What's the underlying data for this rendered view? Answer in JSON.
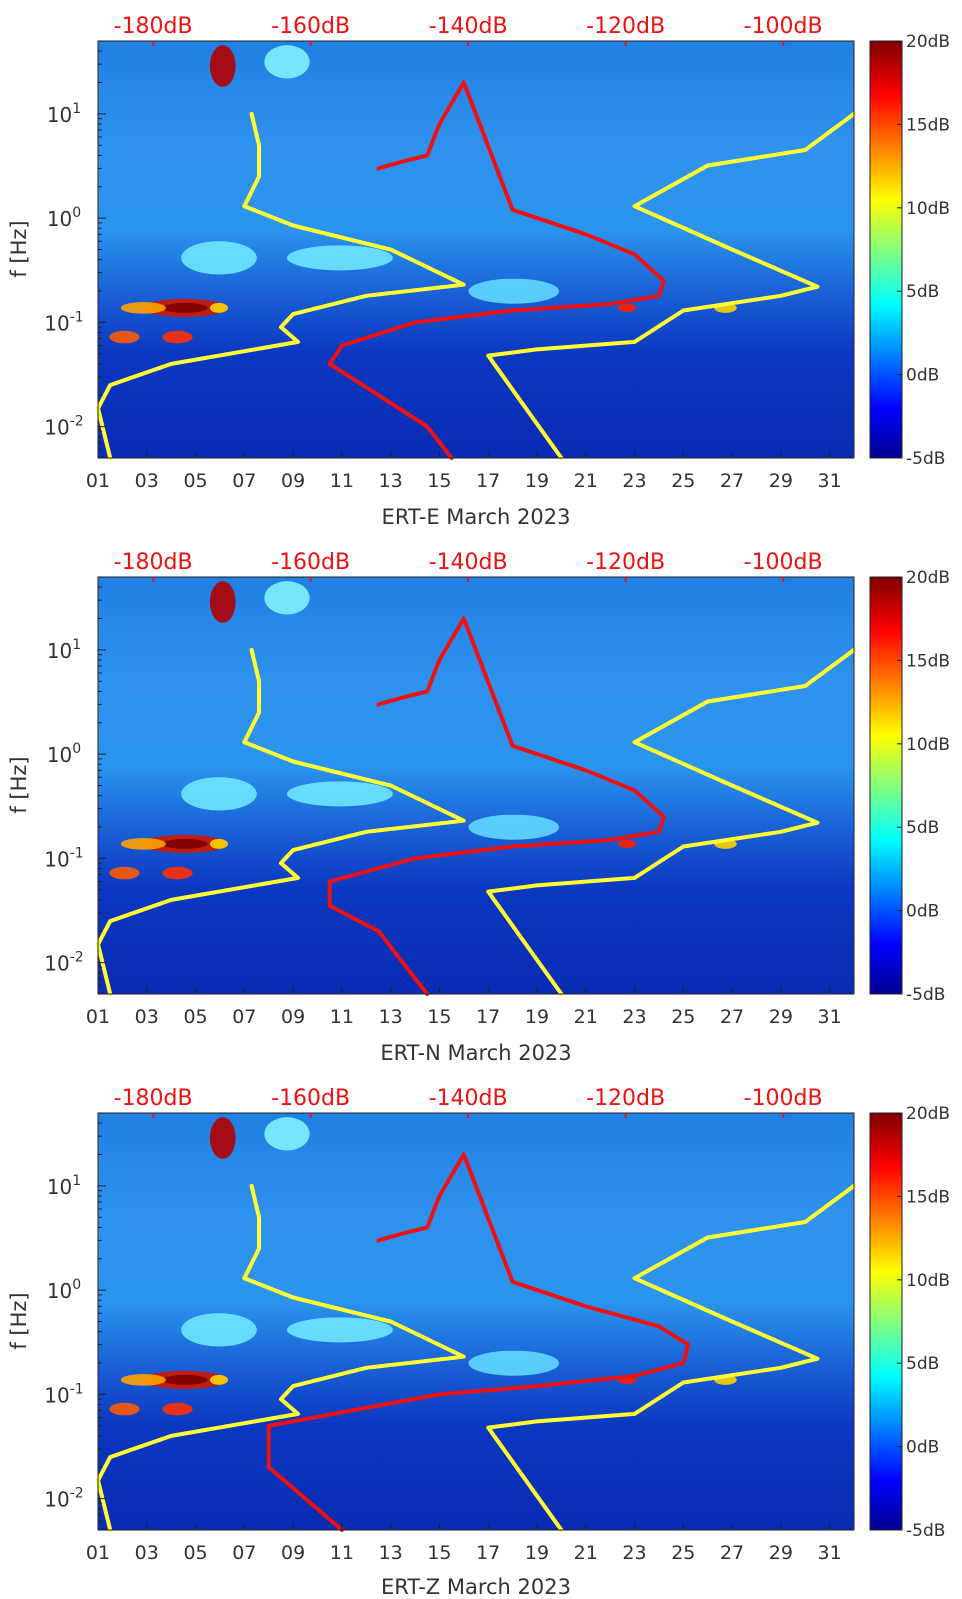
{
  "chart_data": [
    {
      "type": "heatmap",
      "xlabel": "ERT-E March 2023",
      "ylabel": "f [Hz]",
      "x_ticks": [
        "01",
        "03",
        "05",
        "07",
        "09",
        "11",
        "13",
        "15",
        "17",
        "19",
        "21",
        "23",
        "25",
        "27",
        "29",
        "31"
      ],
      "y_ticks": [
        {
          "value": 10,
          "label": "10^1"
        },
        {
          "value": 1,
          "label": "10^0"
        },
        {
          "value": 0.1,
          "label": "10^-1"
        },
        {
          "value": 0.01,
          "label": "10^-2"
        }
      ],
      "yscale": "log",
      "xlim": [
        1,
        32
      ],
      "ylim": [
        0.005,
        50
      ],
      "top_ticks": [
        "-180dB",
        "-160dB",
        "-140dB",
        "-120dB",
        "-100dB"
      ],
      "top_range": [
        -187,
        -91
      ],
      "colorbar": {
        "ticks": [
          "20dB",
          "15dB",
          "10dB",
          "5dB",
          "0dB",
          "-5dB"
        ],
        "range": [
          -5,
          20
        ],
        "colormap": "jet"
      },
      "series": [
        {
          "color": "#ffff33",
          "x": [
            7.3,
            7.6,
            7.6,
            7.0,
            9.0,
            13.0,
            16.0,
            12.0,
            9.0,
            8.5,
            9.2,
            4.0,
            1.5,
            1.0,
            1.5
          ],
          "y": [
            10,
            5,
            2.5,
            1.3,
            0.85,
            0.5,
            0.23,
            0.18,
            0.12,
            0.09,
            0.065,
            0.04,
            0.025,
            0.015,
            0.005
          ]
        },
        {
          "color": "#ffff33",
          "x": [
            32.0,
            30.0,
            26.0,
            23.0,
            27.0,
            30.5,
            29.0,
            25.0,
            23.0,
            19.0,
            17.0,
            20.0
          ],
          "y": [
            10,
            4.5,
            3.2,
            1.3,
            0.5,
            0.22,
            0.18,
            0.13,
            0.065,
            0.055,
            0.048,
            0.005
          ]
        },
        {
          "color": "#ee1111",
          "x": [
            12.5,
            13.5,
            14.5,
            15.0,
            16.0,
            18.0,
            21.0,
            23.0,
            24.2,
            24.0,
            22.0,
            18.0,
            14.0,
            11.0,
            10.5,
            12.5,
            14.5,
            15.5
          ],
          "y": [
            3,
            3.5,
            4,
            8,
            20,
            1.2,
            0.7,
            0.45,
            0.25,
            0.18,
            0.15,
            0.13,
            0.1,
            0.06,
            0.04,
            0.02,
            0.01,
            0.005
          ]
        }
      ]
    },
    {
      "type": "heatmap",
      "xlabel": "ERT-N March 2023",
      "ylabel": "f [Hz]",
      "x_ticks": [
        "01",
        "03",
        "05",
        "07",
        "09",
        "11",
        "13",
        "15",
        "17",
        "19",
        "21",
        "23",
        "25",
        "27",
        "29",
        "31"
      ],
      "y_ticks": [
        {
          "value": 10,
          "label": "10^1"
        },
        {
          "value": 1,
          "label": "10^0"
        },
        {
          "value": 0.1,
          "label": "10^-1"
        },
        {
          "value": 0.01,
          "label": "10^-2"
        }
      ],
      "yscale": "log",
      "xlim": [
        1,
        32
      ],
      "ylim": [
        0.005,
        50
      ],
      "top_ticks": [
        "-180dB",
        "-160dB",
        "-140dB",
        "-120dB",
        "-100dB"
      ],
      "top_range": [
        -187,
        -91
      ],
      "colorbar": {
        "ticks": [
          "20dB",
          "15dB",
          "10dB",
          "5dB",
          "0dB",
          "-5dB"
        ],
        "range": [
          -5,
          20
        ],
        "colormap": "jet"
      },
      "series": [
        {
          "color": "#ffff33",
          "x": [
            7.3,
            7.6,
            7.6,
            7.0,
            9.0,
            13.0,
            16.0,
            12.0,
            9.0,
            8.5,
            9.2,
            4.0,
            1.5,
            1.0,
            1.5
          ],
          "y": [
            10,
            5,
            2.5,
            1.3,
            0.85,
            0.5,
            0.23,
            0.18,
            0.12,
            0.09,
            0.065,
            0.04,
            0.025,
            0.015,
            0.005
          ]
        },
        {
          "color": "#ffff33",
          "x": [
            32.0,
            30.0,
            26.0,
            23.0,
            27.0,
            30.5,
            29.0,
            25.0,
            23.0,
            19.0,
            17.0,
            20.0
          ],
          "y": [
            10,
            4.5,
            3.2,
            1.3,
            0.5,
            0.22,
            0.18,
            0.13,
            0.065,
            0.055,
            0.048,
            0.005
          ]
        },
        {
          "color": "#ee1111",
          "x": [
            12.5,
            13.5,
            14.5,
            15.0,
            16.0,
            18.0,
            21.0,
            23.0,
            24.2,
            24.0,
            22.0,
            18.0,
            14.0,
            10.5,
            10.5,
            12.5,
            14.5
          ],
          "y": [
            3,
            3.5,
            4,
            8,
            20,
            1.2,
            0.7,
            0.45,
            0.25,
            0.18,
            0.15,
            0.13,
            0.1,
            0.06,
            0.035,
            0.02,
            0.005
          ]
        }
      ]
    },
    {
      "type": "heatmap",
      "xlabel": "ERT-Z March 2023",
      "ylabel": "f [Hz]",
      "x_ticks": [
        "01",
        "03",
        "05",
        "07",
        "09",
        "11",
        "13",
        "15",
        "17",
        "19",
        "21",
        "23",
        "25",
        "27",
        "29",
        "31"
      ],
      "y_ticks": [
        {
          "value": 10,
          "label": "10^1"
        },
        {
          "value": 1,
          "label": "10^0"
        },
        {
          "value": 0.1,
          "label": "10^-1"
        },
        {
          "value": 0.01,
          "label": "10^-2"
        }
      ],
      "yscale": "log",
      "xlim": [
        1,
        32
      ],
      "ylim": [
        0.005,
        50
      ],
      "top_ticks": [
        "-180dB",
        "-160dB",
        "-140dB",
        "-120dB",
        "-100dB"
      ],
      "top_range": [
        -187,
        -91
      ],
      "colorbar": {
        "ticks": [
          "20dB",
          "15dB",
          "10dB",
          "5dB",
          "0dB",
          "-5dB"
        ],
        "range": [
          -5,
          20
        ],
        "colormap": "jet"
      },
      "series": [
        {
          "color": "#ffff33",
          "x": [
            7.3,
            7.6,
            7.6,
            7.0,
            9.0,
            13.0,
            16.0,
            12.0,
            9.0,
            8.5,
            9.2,
            4.0,
            1.5,
            1.0,
            1.5
          ],
          "y": [
            10,
            5,
            2.5,
            1.3,
            0.85,
            0.5,
            0.23,
            0.18,
            0.12,
            0.09,
            0.065,
            0.04,
            0.025,
            0.015,
            0.005
          ]
        },
        {
          "color": "#ffff33",
          "x": [
            32.0,
            30.0,
            26.0,
            23.0,
            27.0,
            30.5,
            29.0,
            25.0,
            23.0,
            19.0,
            17.0,
            20.0
          ],
          "y": [
            10,
            4.5,
            3.2,
            1.3,
            0.5,
            0.22,
            0.18,
            0.13,
            0.065,
            0.055,
            0.048,
            0.005
          ]
        },
        {
          "color": "#ee1111",
          "x": [
            12.5,
            13.5,
            14.5,
            15.0,
            16.0,
            18.0,
            21.0,
            24.0,
            25.2,
            25.0,
            23.0,
            19.0,
            15.0,
            8.0,
            8.0,
            11.0
          ],
          "y": [
            3,
            3.5,
            4,
            8,
            20,
            1.2,
            0.7,
            0.45,
            0.3,
            0.2,
            0.15,
            0.12,
            0.1,
            0.05,
            0.02,
            0.005
          ]
        }
      ]
    }
  ]
}
